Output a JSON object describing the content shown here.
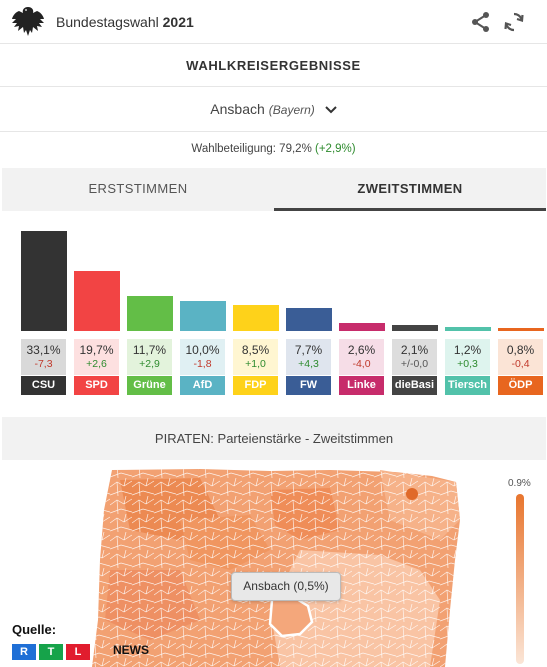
{
  "header": {
    "app_name": "Bundestagswahl",
    "year": "2021",
    "share_icon": "share-icon",
    "refresh_icon": "refresh-icon"
  },
  "section_title": "WAHLKREISERGEBNISSE",
  "district": {
    "name": "Ansbach",
    "state": "(Bayern)"
  },
  "turnout": {
    "label": "Wahlbeteiligung: 79,2%",
    "delta": "(+2,9%)"
  },
  "tabs": {
    "first": "ERSTSTIMMEN",
    "second": "ZWEITSTIMMEN",
    "active": "second"
  },
  "chart_data": {
    "type": "bar",
    "categories": [
      "CSU",
      "SPD",
      "Grüne",
      "AfD",
      "FDP",
      "FW",
      "Linke",
      "dieBasi",
      "Tiersch",
      "ÖDP"
    ],
    "values": [
      33.1,
      19.7,
      11.7,
      10.0,
      8.5,
      7.7,
      2.6,
      2.1,
      1.2,
      0.8
    ],
    "value_labels": [
      "33,1%",
      "19,7%",
      "11,7%",
      "10,0%",
      "8,5%",
      "7,7%",
      "2,6%",
      "2,1%",
      "1,2%",
      "0,8%"
    ],
    "change_labels": [
      "-7,3",
      "+2,6",
      "+2,9",
      "-1,8",
      "+1,0",
      "+4,3",
      "-4,0",
      "+/-0,0",
      "+0,3",
      "-0,4"
    ],
    "colors": [
      "#333333",
      "#f24444",
      "#63be47",
      "#5ab3c4",
      "#fed21a",
      "#3a5d96",
      "#c72c6b",
      "#444444",
      "#52c2aa",
      "#e8661f"
    ],
    "tint_colors": [
      "#d9d9d9",
      "#fde0e0",
      "#e3f3dc",
      "#e0f0f3",
      "#fff6d1",
      "#dfe5ee",
      "#f6dde7",
      "#dddddd",
      "#def4ee",
      "#fbe4d6"
    ]
  },
  "map": {
    "title": "PIRATEN: Parteienstärke - Zweitstimmen",
    "tooltip": "Ansbach (0,5%)",
    "legend_max": "0.9%"
  },
  "source": {
    "label": "Quelle:",
    "logo_letters": [
      "R",
      "T",
      "L"
    ],
    "logo_suffix": "NEWS"
  }
}
